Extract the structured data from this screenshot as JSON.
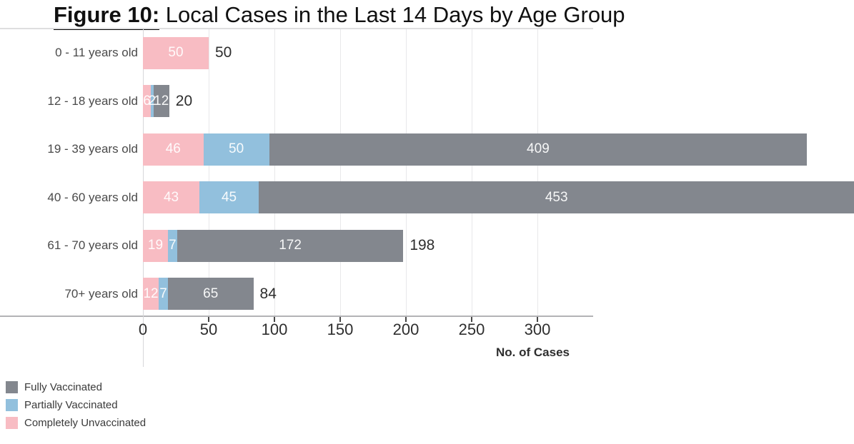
{
  "title": {
    "prefix": "Figure 10:",
    "rest": " Local Cases in the Last 14 Days by Age Group"
  },
  "axis": {
    "label": "No. of Cases"
  },
  "colors": {
    "fully_vaccinated": "#83878e",
    "partially_vaccinated": "#92c0dd",
    "completely_unvaccinated": "#f8bcc3"
  },
  "chart_data": {
    "type": "bar",
    "orientation": "horizontal",
    "stacked": true,
    "title": "Figure 10: Local Cases in the Last 14 Days by Age Group",
    "xlabel": "No. of Cases",
    "xticks": [
      0,
      50,
      100,
      150,
      200,
      250,
      300
    ],
    "xlim": [
      0,
      342
    ],
    "grid": true,
    "categories": [
      "0 - 11 years old",
      "12 - 18 years old",
      "19 - 39 years old",
      "40 - 60 years old",
      "61 - 70 years old",
      "70+ years old"
    ],
    "series": [
      {
        "name": "Completely Unvaccinated",
        "color": "#f8bcc3",
        "values": [
          50,
          6,
          46,
          43,
          19,
          12
        ]
      },
      {
        "name": "Partially Vaccinated",
        "color": "#92c0dd",
        "values": [
          0,
          2,
          50,
          45,
          7,
          7
        ]
      },
      {
        "name": "Fully Vaccinated",
        "color": "#83878e",
        "values": [
          0,
          12,
          409,
          453,
          172,
          65
        ]
      }
    ],
    "total_labels": [
      "50",
      "20",
      "",
      "",
      "198",
      "84"
    ],
    "legend_position": "bottom-left"
  },
  "legend": {
    "items": [
      {
        "label": "Fully Vaccinated",
        "color": "#83878e"
      },
      {
        "label": "Partially Vaccinated",
        "color": "#92c0dd"
      },
      {
        "label": "Completely Unvaccinated",
        "color": "#f8bcc3"
      }
    ]
  }
}
